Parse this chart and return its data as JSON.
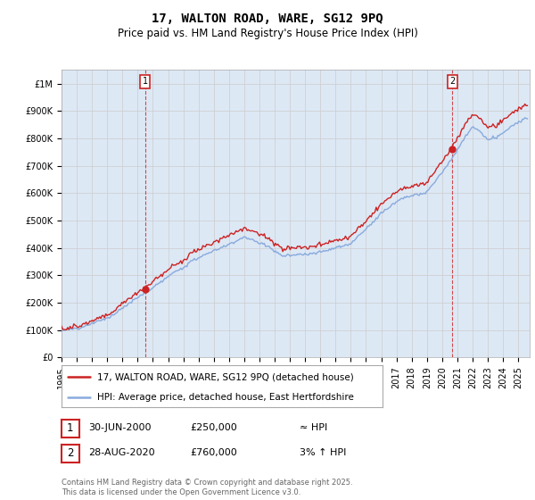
{
  "title": "17, WALTON ROAD, WARE, SG12 9PQ",
  "subtitle": "Price paid vs. HM Land Registry's House Price Index (HPI)",
  "ylabel_ticks": [
    "£0",
    "£100K",
    "£200K",
    "£300K",
    "£400K",
    "£500K",
    "£600K",
    "£700K",
    "£800K",
    "£900K",
    "£1M"
  ],
  "ytick_values": [
    0,
    100000,
    200000,
    300000,
    400000,
    500000,
    600000,
    700000,
    800000,
    900000,
    1000000
  ],
  "ylim": [
    0,
    1050000
  ],
  "xlim_start": 1995.0,
  "xlim_end": 2025.75,
  "xticks": [
    1995,
    1996,
    1997,
    1998,
    1999,
    2000,
    2001,
    2002,
    2003,
    2004,
    2005,
    2006,
    2007,
    2008,
    2009,
    2010,
    2011,
    2012,
    2013,
    2014,
    2015,
    2016,
    2017,
    2018,
    2019,
    2020,
    2021,
    2022,
    2023,
    2024,
    2025
  ],
  "hpi_color": "#88aadd",
  "price_color": "#cc2222",
  "vline_color": "#cc2222",
  "grid_color": "#cccccc",
  "background_color": "#ffffff",
  "plot_bg_color": "#dde8f5",
  "sale1_date": 2000.5,
  "sale1_price": 250000,
  "sale1_label": "1",
  "sale2_date": 2020.66,
  "sale2_price": 760000,
  "sale2_label": "2",
  "legend_line1": "17, WALTON ROAD, WARE, SG12 9PQ (detached house)",
  "legend_line2": "HPI: Average price, detached house, East Hertfordshire",
  "footer": "Contains HM Land Registry data © Crown copyright and database right 2025.\nThis data is licensed under the Open Government Licence v3.0.",
  "title_fontsize": 10,
  "subtitle_fontsize": 8.5,
  "tick_fontsize": 7,
  "legend_fontsize": 7.5,
  "annot_fontsize": 8
}
